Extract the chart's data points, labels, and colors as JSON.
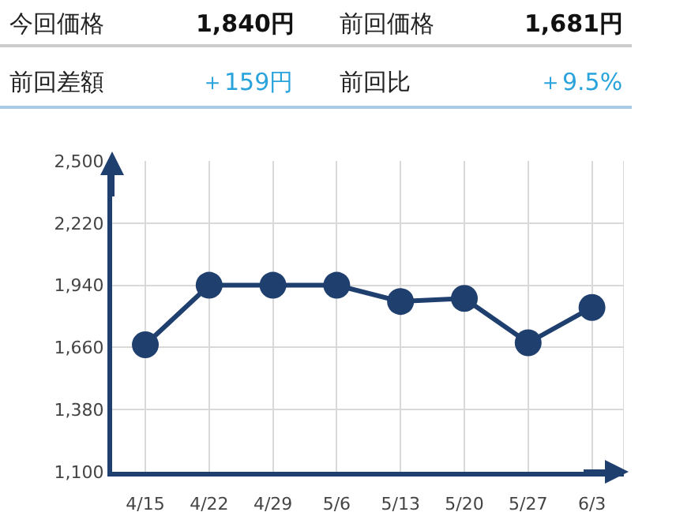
{
  "chart_data": {
    "type": "line",
    "annotations": [
      "今回価格",
      "1,840円",
      "前回価格",
      "1,681円",
      "前回差額",
      "＋159円",
      "前回比",
      "＋9.5%"
    ],
    "categories": [
      "4/15",
      "4/22",
      "4/29",
      "5/6",
      "5/13",
      "5/20",
      "5/27",
      "6/3"
    ],
    "series": [
      {
        "color": "#1f3f6e",
        "values": [
          1672,
          1940,
          1940,
          1940,
          1867,
          1881,
          1681,
          1840
        ]
      }
    ],
    "ylim": [
      1100,
      2500
    ],
    "yticks": [
      {
        "value": 1100,
        "label": "1,100"
      },
      {
        "value": 1380,
        "label": "1,380"
      },
      {
        "value": 1660,
        "label": "1,660"
      },
      {
        "value": 1940,
        "label": "1,940"
      },
      {
        "value": 2220,
        "label": "2,220"
      },
      {
        "value": 2500,
        "label": "2,500"
      }
    ],
    "grid": true,
    "marker": "circle",
    "line_style": "solid",
    "legend": false
  }
}
